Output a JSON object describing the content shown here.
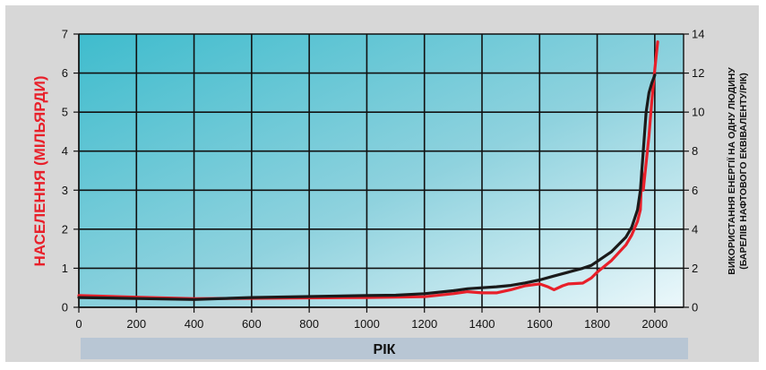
{
  "chart_data": {
    "type": "line",
    "xlabel": "РІК",
    "ylabel_left": "НАСЕЛЕННЯ (МІЛЬЯРДИ)",
    "ylabel_right_line1": "ВИКОРИСТАННЯ ЕНЕРГІЇ НА ОДНУ ЛЮДИНУ",
    "ylabel_right_line2": "(БАРЕЛІВ НАФТОВОГО ЕКВІВАЛЕНТУ/РІК)",
    "xlim": [
      0,
      2100
    ],
    "ylim_left": [
      0,
      7
    ],
    "ylim_right": [
      0,
      14
    ],
    "x_ticks": [
      0,
      200,
      400,
      600,
      800,
      1000,
      1200,
      1400,
      1600,
      1800,
      2000
    ],
    "y_left_ticks": [
      0,
      1,
      2,
      3,
      4,
      5,
      6,
      7
    ],
    "y_right_ticks": [
      0,
      2,
      4,
      6,
      8,
      10,
      12,
      14
    ],
    "grid": true,
    "colors": {
      "population": "#e8202a",
      "energy": "#1a1a1a",
      "ylabel_left": "#e8202a"
    },
    "series": [
      {
        "key": "population",
        "axis": "left",
        "x": [
          0,
          200,
          400,
          600,
          800,
          1000,
          1100,
          1200,
          1300,
          1350,
          1400,
          1450,
          1500,
          1550,
          1600,
          1630,
          1650,
          1680,
          1700,
          1750,
          1780,
          1800,
          1850,
          1900,
          1920,
          1940,
          1950,
          1955,
          1960,
          1970,
          1980,
          1990,
          2000,
          2010
        ],
        "y": [
          0.3,
          0.26,
          0.22,
          0.23,
          0.24,
          0.25,
          0.26,
          0.27,
          0.35,
          0.4,
          0.37,
          0.37,
          0.45,
          0.55,
          0.6,
          0.52,
          0.45,
          0.55,
          0.6,
          0.62,
          0.75,
          0.9,
          1.2,
          1.6,
          1.85,
          2.2,
          2.5,
          3.5,
          3.0,
          3.7,
          4.4,
          5.3,
          6.1,
          6.8
        ]
      },
      {
        "key": "energy",
        "axis": "right",
        "x": [
          0,
          200,
          400,
          600,
          800,
          1000,
          1100,
          1200,
          1300,
          1350,
          1400,
          1450,
          1500,
          1550,
          1600,
          1650,
          1700,
          1750,
          1780,
          1800,
          1850,
          1900,
          1920,
          1940,
          1950,
          1960,
          1970,
          1980,
          1990,
          2000
        ],
        "y": [
          0.5,
          0.45,
          0.4,
          0.5,
          0.55,
          0.6,
          0.62,
          0.7,
          0.85,
          0.95,
          1.0,
          1.05,
          1.12,
          1.25,
          1.4,
          1.6,
          1.8,
          2.0,
          2.15,
          2.35,
          2.85,
          3.6,
          4.1,
          5.0,
          6.0,
          8.0,
          10.0,
          11.0,
          11.5,
          11.9
        ]
      }
    ]
  }
}
